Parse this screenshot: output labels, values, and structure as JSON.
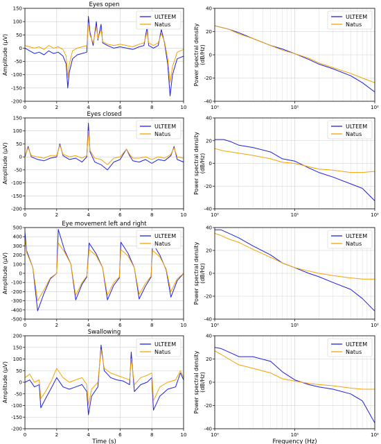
{
  "colors": {
    "ulteem": "#1f1fe0",
    "natus": "#f5a300"
  },
  "chart_data": [
    {
      "type": "line",
      "panel": "time",
      "title": "Eyes open",
      "xlabel": "",
      "ylabel": "Amplitude (μV)",
      "xlim": [
        0,
        10
      ],
      "ylim": [
        -200,
        150
      ],
      "xticks": [
        "0",
        "2",
        "4",
        "6",
        "8",
        "10"
      ],
      "yticks": [
        "150",
        "100",
        "50",
        "0",
        "-50",
        "-100",
        "-150",
        "-200"
      ],
      "grid": true,
      "legend": "top-right",
      "series": [
        {
          "name": "ULTEEM",
          "x": [
            0,
            0.3,
            0.6,
            0.9,
            1.2,
            1.5,
            1.8,
            2.1,
            2.4,
            2.6,
            2.7,
            2.8,
            3.0,
            3.3,
            3.6,
            3.9,
            4.0,
            4.1,
            4.3,
            4.5,
            4.6,
            4.8,
            4.9,
            5.2,
            5.6,
            6.0,
            6.4,
            6.8,
            7.2,
            7.5,
            7.7,
            7.8,
            8.1,
            8.4,
            8.6,
            8.8,
            9.0,
            9.15,
            9.3,
            9.6,
            10
          ],
          "y": [
            0,
            -10,
            -20,
            -15,
            -25,
            -10,
            -20,
            -15,
            -30,
            -60,
            -150,
            -90,
            -40,
            -25,
            -20,
            -15,
            120,
            60,
            10,
            100,
            30,
            90,
            20,
            10,
            0,
            5,
            0,
            -5,
            5,
            10,
            80,
            10,
            0,
            10,
            70,
            20,
            -60,
            -180,
            -100,
            -40,
            -30
          ]
        },
        {
          "name": "Natus",
          "x": [
            0,
            0.3,
            0.6,
            0.9,
            1.2,
            1.5,
            1.8,
            2.1,
            2.4,
            2.6,
            2.7,
            2.8,
            3.0,
            3.3,
            3.6,
            3.9,
            4.0,
            4.1,
            4.3,
            4.5,
            4.6,
            4.8,
            4.9,
            5.2,
            5.6,
            6.0,
            6.4,
            6.8,
            7.2,
            7.5,
            7.7,
            7.8,
            8.1,
            8.4,
            8.6,
            8.8,
            9.0,
            9.15,
            9.3,
            9.6,
            10
          ],
          "y": [
            10,
            5,
            0,
            5,
            -5,
            10,
            0,
            5,
            -5,
            -30,
            -110,
            -60,
            -10,
            0,
            5,
            10,
            95,
            50,
            20,
            80,
            35,
            70,
            25,
            15,
            10,
            15,
            10,
            5,
            15,
            20,
            60,
            20,
            10,
            20,
            55,
            25,
            -40,
            -130,
            -70,
            -15,
            -5
          ]
        }
      ]
    },
    {
      "type": "line",
      "panel": "psd",
      "title": "",
      "xlabel": "",
      "ylabel": "Power spectral density (dB/Hz)",
      "xscale": "log",
      "xlim": [
        1,
        100
      ],
      "ylim": [
        -40,
        40
      ],
      "xticks": [
        "10⁰",
        "10¹",
        "10²"
      ],
      "yticks": [
        "40",
        "20",
        "0",
        "-20",
        "-40"
      ],
      "grid": true,
      "legend": "top-right",
      "series": [
        {
          "name": "ULTEEM",
          "x": [
            1,
            1.5,
            2,
            3,
            5,
            7,
            10,
            15,
            20,
            30,
            50,
            70,
            100
          ],
          "y": [
            25,
            22,
            19,
            14,
            8,
            5,
            1,
            -4,
            -8,
            -12,
            -18,
            -24,
            -32
          ]
        },
        {
          "name": "Natus",
          "x": [
            1,
            1.5,
            2,
            3,
            5,
            7,
            10,
            15,
            20,
            30,
            50,
            70,
            100
          ],
          "y": [
            25,
            22,
            18,
            14,
            8,
            4,
            1,
            -3,
            -7,
            -11,
            -16,
            -20,
            -24
          ]
        }
      ]
    },
    {
      "type": "line",
      "panel": "time",
      "title": "Eyes closed",
      "xlabel": "",
      "ylabel": "Amplitude (μV)",
      "xlim": [
        0,
        10
      ],
      "ylim": [
        -200,
        150
      ],
      "xticks": [
        "0",
        "2",
        "4",
        "6",
        "8",
        "10"
      ],
      "yticks": [
        "150",
        "100",
        "50",
        "0",
        "-50",
        "-100",
        "-150",
        "-200"
      ],
      "grid": true,
      "legend": "top-right",
      "series": [
        {
          "name": "ULTEEM",
          "x": [
            0,
            0.2,
            0.4,
            0.8,
            1.2,
            1.6,
            2.0,
            2.2,
            2.4,
            2.8,
            3.2,
            3.6,
            3.9,
            4.0,
            4.1,
            4.4,
            4.8,
            5.2,
            5.6,
            6.0,
            6.4,
            6.6,
            6.8,
            7.2,
            7.6,
            8.0,
            8.4,
            8.8,
            9.2,
            9.4,
            9.6,
            10
          ],
          "y": [
            0,
            40,
            0,
            -10,
            -15,
            -5,
            0,
            50,
            5,
            -10,
            -5,
            -20,
            0,
            130,
            20,
            -20,
            -30,
            -50,
            -20,
            -10,
            30,
            5,
            -15,
            -20,
            -10,
            -25,
            -10,
            -15,
            5,
            40,
            -10,
            -20
          ]
        },
        {
          "name": "Natus",
          "x": [
            0,
            0.2,
            0.4,
            0.8,
            1.2,
            1.6,
            2.0,
            2.2,
            2.4,
            2.8,
            3.2,
            3.6,
            3.9,
            4.0,
            4.1,
            4.4,
            4.8,
            5.2,
            5.6,
            6.0,
            6.4,
            6.6,
            6.8,
            7.2,
            7.6,
            8.0,
            8.4,
            8.8,
            9.2,
            9.4,
            9.6,
            10
          ],
          "y": [
            5,
            35,
            5,
            0,
            -5,
            5,
            5,
            45,
            10,
            0,
            5,
            -5,
            5,
            100,
            25,
            -5,
            -10,
            -30,
            -5,
            0,
            30,
            10,
            -5,
            -5,
            0,
            -10,
            0,
            -5,
            10,
            35,
            0,
            -5
          ]
        }
      ]
    },
    {
      "type": "line",
      "panel": "psd",
      "title": "",
      "xlabel": "",
      "ylabel": "Power spectral density (dB/Hz)",
      "xscale": "log",
      "xlim": [
        1,
        100
      ],
      "ylim": [
        -40,
        40
      ],
      "xticks": [
        "10⁰",
        "10¹",
        "10²"
      ],
      "yticks": [
        "40",
        "20",
        "0",
        "-20",
        "-40"
      ],
      "grid": true,
      "legend": "top-right",
      "series": [
        {
          "name": "ULTEEM",
          "x": [
            1,
            1.3,
            1.6,
            2,
            3,
            5,
            7,
            10,
            15,
            20,
            30,
            50,
            70,
            100
          ],
          "y": [
            21,
            21,
            19,
            16,
            14,
            10,
            4,
            2,
            -4,
            -8,
            -12,
            -18,
            -22,
            -33
          ]
        },
        {
          "name": "Natus",
          "x": [
            1,
            1.3,
            1.6,
            2,
            3,
            5,
            7,
            10,
            15,
            20,
            30,
            50,
            70,
            100
          ],
          "y": [
            13,
            11,
            10,
            9,
            7,
            4,
            1,
            0,
            -3,
            -5,
            -6,
            -8,
            -8,
            -7
          ]
        }
      ]
    },
    {
      "type": "line",
      "panel": "time",
      "title": "Eye movement left and right",
      "xlabel": "",
      "ylabel": "Amplitude (μV)",
      "xlim": [
        0,
        10
      ],
      "ylim": [
        -500,
        500
      ],
      "xticks": [
        "0",
        "2",
        "4",
        "6",
        "8",
        "10"
      ],
      "yticks": [
        "500",
        "400",
        "300",
        "200",
        "100",
        "0",
        "-100",
        "-200",
        "-300",
        "-400",
        "-500"
      ],
      "grid": true,
      "legend": "top-right",
      "series": [
        {
          "name": "ULTEEM",
          "x": [
            0,
            0.1,
            0.5,
            0.8,
            1.2,
            1.6,
            2.0,
            2.1,
            2.5,
            2.9,
            3.2,
            3.6,
            3.9,
            4.05,
            4.5,
            4.9,
            5.2,
            5.6,
            5.95,
            6.05,
            6.5,
            6.9,
            7.2,
            7.6,
            7.95,
            8.05,
            8.5,
            8.9,
            9.2,
            9.6,
            10
          ],
          "y": [
            450,
            250,
            60,
            -410,
            -220,
            -60,
            0,
            480,
            250,
            100,
            -290,
            -120,
            -40,
            330,
            210,
            60,
            -290,
            -130,
            -50,
            340,
            220,
            60,
            -280,
            -140,
            -40,
            330,
            200,
            40,
            -260,
            -80,
            0
          ]
        },
        {
          "name": "Natus",
          "x": [
            0,
            0.1,
            0.5,
            0.8,
            1.2,
            1.6,
            2.0,
            2.1,
            2.5,
            2.9,
            3.2,
            3.6,
            3.9,
            4.05,
            4.5,
            4.9,
            5.2,
            5.6,
            5.95,
            6.05,
            6.5,
            6.9,
            7.2,
            7.6,
            7.95,
            8.05,
            8.5,
            8.9,
            9.2,
            9.6,
            10
          ],
          "y": [
            380,
            230,
            60,
            -300,
            -180,
            -50,
            0,
            330,
            230,
            100,
            -240,
            -100,
            -30,
            260,
            190,
            60,
            -240,
            -100,
            -40,
            260,
            190,
            60,
            -230,
            -110,
            -30,
            250,
            180,
            50,
            -200,
            -60,
            0
          ]
        }
      ]
    },
    {
      "type": "line",
      "panel": "psd",
      "title": "",
      "xlabel": "",
      "ylabel": "Power spectral density (dB/Hz)",
      "xscale": "log",
      "xlim": [
        1,
        100
      ],
      "ylim": [
        -40,
        40
      ],
      "xticks": [
        "10⁰",
        "10¹",
        "10²"
      ],
      "yticks": [
        "40",
        "20",
        "0",
        "-20",
        "-40"
      ],
      "grid": true,
      "legend": "top-right",
      "series": [
        {
          "name": "ULTEEM",
          "x": [
            1,
            1.2,
            1.5,
            2,
            3,
            5,
            7,
            10,
            15,
            20,
            30,
            50,
            70,
            100
          ],
          "y": [
            38,
            38,
            35,
            31,
            24,
            16,
            9,
            5,
            0,
            -3,
            -8,
            -14,
            -22,
            -33
          ]
        },
        {
          "name": "Natus",
          "x": [
            1,
            1.2,
            1.5,
            2,
            3,
            5,
            7,
            10,
            15,
            20,
            30,
            50,
            70,
            100
          ],
          "y": [
            35,
            33,
            30,
            27,
            21,
            14,
            9,
            5,
            2,
            0,
            -2,
            -4,
            -5,
            -5
          ]
        }
      ]
    },
    {
      "type": "line",
      "panel": "time",
      "title": "Swallowing",
      "xlabel": "Time (s)",
      "ylabel": "Amplitude (μV)",
      "xlim": [
        0,
        10
      ],
      "ylim": [
        -200,
        200
      ],
      "xticks": [
        "0",
        "2",
        "4",
        "6",
        "8",
        "10"
      ],
      "yticks": [
        "200",
        "150",
        "100",
        "50",
        "0",
        "-50",
        "-100",
        "-150",
        "-200"
      ],
      "grid": true,
      "legend": "top-right",
      "series": [
        {
          "name": "ULTEEM",
          "x": [
            0,
            0.3,
            0.6,
            0.9,
            1.0,
            1.3,
            1.7,
            2.0,
            2.4,
            2.8,
            3.2,
            3.6,
            3.9,
            4.0,
            4.2,
            4.6,
            4.8,
            5.0,
            5.4,
            5.8,
            6.2,
            6.6,
            6.7,
            6.9,
            7.3,
            7.7,
            8.0,
            8.1,
            8.5,
            9.0,
            9.5,
            9.8,
            10
          ],
          "y": [
            0,
            10,
            -20,
            -10,
            -110,
            -70,
            -20,
            20,
            -20,
            -30,
            -20,
            -10,
            -40,
            -140,
            -60,
            -20,
            160,
            50,
            20,
            10,
            5,
            -10,
            130,
            -40,
            -10,
            0,
            20,
            -120,
            -60,
            -30,
            -20,
            40,
            10
          ]
        },
        {
          "name": "Natus",
          "x": [
            0,
            0.3,
            0.6,
            0.9,
            1.0,
            1.3,
            1.7,
            2.0,
            2.4,
            2.8,
            3.2,
            3.6,
            3.9,
            4.0,
            4.2,
            4.6,
            4.8,
            5.0,
            5.4,
            5.8,
            6.2,
            6.6,
            6.7,
            6.9,
            7.3,
            7.7,
            8.0,
            8.1,
            8.5,
            9.0,
            9.5,
            9.8,
            10
          ],
          "y": [
            20,
            35,
            0,
            10,
            -70,
            -40,
            10,
            60,
            20,
            0,
            10,
            20,
            -10,
            -100,
            -30,
            0,
            140,
            60,
            40,
            30,
            20,
            10,
            100,
            -10,
            20,
            30,
            40,
            -80,
            -20,
            0,
            10,
            50,
            20
          ]
        }
      ]
    },
    {
      "type": "line",
      "panel": "psd",
      "title": "",
      "xlabel": "Frequency (Hz)",
      "ylabel": "Power spectral density (dB/Hz)",
      "xscale": "log",
      "xlim": [
        1,
        100
      ],
      "ylim": [
        -40,
        40
      ],
      "xticks": [
        "10⁰",
        "10¹",
        "10²"
      ],
      "yticks": [
        "40",
        "20",
        "0",
        "-20",
        "-40"
      ],
      "grid": true,
      "legend": "top-right",
      "series": [
        {
          "name": "ULTEEM",
          "x": [
            1,
            1.2,
            1.5,
            2,
            3,
            5,
            7,
            10,
            15,
            20,
            30,
            50,
            70,
            100
          ],
          "y": [
            30,
            29,
            26,
            22,
            22,
            18,
            9,
            2,
            -2,
            -4,
            -6,
            -10,
            -16,
            -35
          ]
        },
        {
          "name": "Natus",
          "x": [
            1,
            1.2,
            1.5,
            2,
            3,
            5,
            7,
            10,
            15,
            20,
            30,
            50,
            70,
            100
          ],
          "y": [
            27,
            24,
            20,
            15,
            12,
            8,
            3,
            1,
            -1,
            -2,
            -3,
            -5,
            -6,
            -6
          ]
        }
      ]
    }
  ]
}
